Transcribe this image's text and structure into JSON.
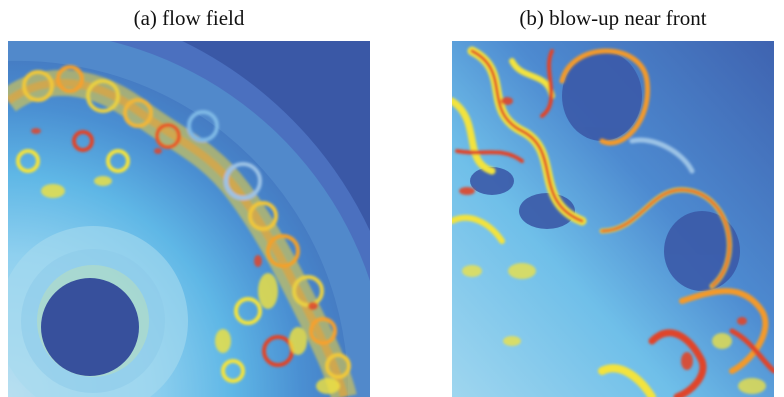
{
  "figure": {
    "panel_a": {
      "caption": "(a) flow field"
    },
    "panel_b": {
      "caption": "(b) blow-up near front"
    }
  },
  "colors": {
    "background_deep_blue": "#3b5aa8",
    "outer_ring_blue": "#4a6fbf",
    "core_blue": "#38509a",
    "light_cyan": "#6fc7ef",
    "pale_cyan": "#a9dcef",
    "yellow": "#f3e33d",
    "orange": "#f49b2a",
    "red": "#e0452a"
  }
}
